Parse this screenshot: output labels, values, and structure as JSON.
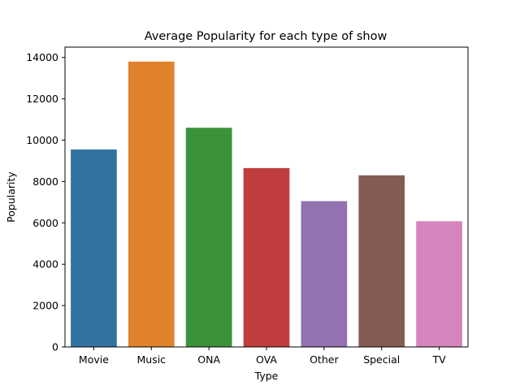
{
  "chart_data": {
    "type": "bar",
    "title": "Average Popularity for each type of show",
    "xlabel": "Type",
    "ylabel": "Popularity",
    "categories": [
      "Movie",
      "Music",
      "ONA",
      "OVA",
      "Other",
      "Special",
      "TV"
    ],
    "values": [
      9550,
      13800,
      10600,
      8650,
      7050,
      8300,
      6080
    ],
    "colors": [
      "#3274a1",
      "#e1812c",
      "#3a923a",
      "#c03d3e",
      "#9372b2",
      "#845b53",
      "#d684bd"
    ],
    "ylim": [
      0,
      14500
    ],
    "yticks": [
      0,
      2000,
      4000,
      6000,
      8000,
      10000,
      12000,
      14000
    ],
    "ytick_labels": [
      "0",
      "2000",
      "4000",
      "6000",
      "8000",
      "10000",
      "12000",
      "14000"
    ],
    "grid": false,
    "legend": "none"
  }
}
